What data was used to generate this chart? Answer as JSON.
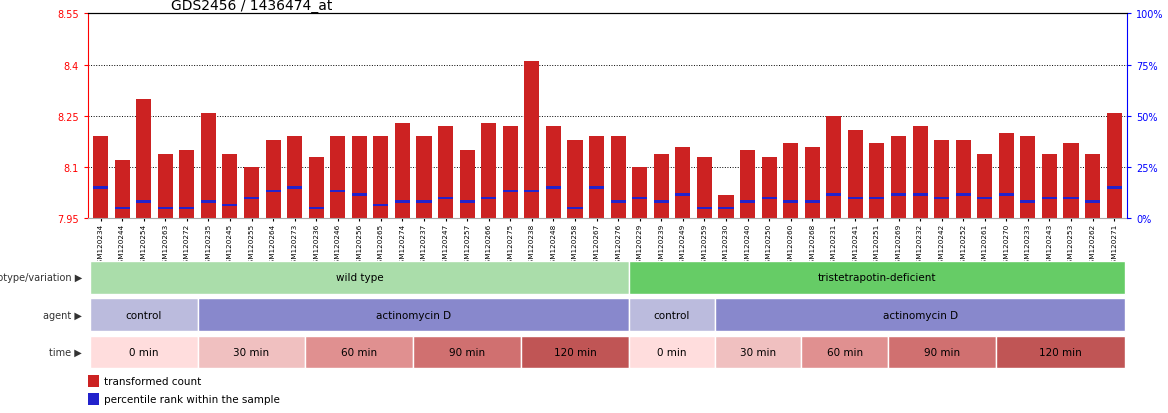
{
  "title": "GDS2456 / 1436474_at",
  "samples": [
    "GSM120234",
    "GSM120244",
    "GSM120254",
    "GSM120263",
    "GSM120272",
    "GSM120235",
    "GSM120245",
    "GSM120255",
    "GSM120264",
    "GSM120273",
    "GSM120236",
    "GSM120246",
    "GSM120256",
    "GSM120265",
    "GSM120274",
    "GSM120237",
    "GSM120247",
    "GSM120257",
    "GSM120266",
    "GSM120275",
    "GSM120238",
    "GSM120248",
    "GSM120258",
    "GSM120267",
    "GSM120276",
    "GSM120229",
    "GSM120239",
    "GSM120249",
    "GSM120259",
    "GSM120230",
    "GSM120240",
    "GSM120250",
    "GSM120260",
    "GSM120268",
    "GSM120231",
    "GSM120241",
    "GSM120251",
    "GSM120269",
    "GSM120232",
    "GSM120242",
    "GSM120252",
    "GSM120261",
    "GSM120270",
    "GSM120233",
    "GSM120243",
    "GSM120253",
    "GSM120262",
    "GSM120271"
  ],
  "red_values": [
    8.19,
    8.12,
    8.3,
    8.14,
    8.15,
    8.26,
    8.14,
    8.1,
    8.18,
    8.19,
    8.13,
    8.19,
    8.19,
    8.19,
    8.23,
    8.19,
    8.22,
    8.15,
    8.23,
    8.22,
    8.41,
    8.22,
    8.18,
    8.19,
    8.19,
    8.1,
    8.14,
    8.16,
    8.13,
    8.02,
    8.15,
    8.13,
    8.17,
    8.16,
    8.25,
    8.21,
    8.17,
    8.19,
    8.22,
    8.18,
    8.18,
    8.14,
    8.2,
    8.19,
    8.14,
    8.17,
    8.14,
    8.26
  ],
  "blue_values": [
    8.04,
    7.98,
    8.0,
    7.98,
    7.98,
    8.0,
    7.99,
    8.01,
    8.03,
    8.04,
    7.98,
    8.03,
    8.02,
    7.99,
    8.0,
    8.0,
    8.01,
    8.0,
    8.01,
    8.03,
    8.03,
    8.04,
    7.98,
    8.04,
    8.0,
    8.01,
    8.0,
    8.02,
    7.98,
    7.98,
    8.0,
    8.01,
    8.0,
    8.0,
    8.02,
    8.01,
    8.01,
    8.02,
    8.02,
    8.01,
    8.02,
    8.01,
    8.02,
    8.0,
    8.01,
    8.01,
    8.0,
    8.04
  ],
  "ymin": 7.95,
  "ymax": 8.55,
  "yticks_left": [
    7.95,
    8.1,
    8.25,
    8.4,
    8.55
  ],
  "yticks_right": [
    0,
    25,
    50,
    75,
    100
  ],
  "dotted_lines": [
    8.1,
    8.25,
    8.4
  ],
  "genotype_groups": [
    {
      "label": "wild type",
      "start": 0,
      "end": 24,
      "color": "#aaddaa"
    },
    {
      "label": "tristetrapotin-deficient",
      "start": 25,
      "end": 47,
      "color": "#66CC66"
    }
  ],
  "agent_groups": [
    {
      "label": "control",
      "start": 0,
      "end": 4,
      "color": "#BBBBDD"
    },
    {
      "label": "actinomycin D",
      "start": 5,
      "end": 24,
      "color": "#8888CC"
    },
    {
      "label": "control",
      "start": 25,
      "end": 28,
      "color": "#BBBBDD"
    },
    {
      "label": "actinomycin D",
      "start": 29,
      "end": 47,
      "color": "#8888CC"
    }
  ],
  "time_groups": [
    {
      "label": "0 min",
      "start": 0,
      "end": 4,
      "color": "#FFDDDD"
    },
    {
      "label": "30 min",
      "start": 5,
      "end": 9,
      "color": "#F0C0C0"
    },
    {
      "label": "60 min",
      "start": 10,
      "end": 14,
      "color": "#E09090"
    },
    {
      "label": "90 min",
      "start": 15,
      "end": 19,
      "color": "#D07070"
    },
    {
      "label": "120 min",
      "start": 20,
      "end": 24,
      "color": "#C05555"
    },
    {
      "label": "0 min",
      "start": 25,
      "end": 28,
      "color": "#FFDDDD"
    },
    {
      "label": "30 min",
      "start": 29,
      "end": 32,
      "color": "#F0C0C0"
    },
    {
      "label": "60 min",
      "start": 33,
      "end": 36,
      "color": "#E09090"
    },
    {
      "label": "90 min",
      "start": 37,
      "end": 41,
      "color": "#D07070"
    },
    {
      "label": "120 min",
      "start": 42,
      "end": 47,
      "color": "#C05555"
    }
  ],
  "bar_color": "#CC2222",
  "blue_color": "#2222CC",
  "title_fontsize": 10,
  "tick_fontsize": 7,
  "bar_width": 0.7,
  "blue_bar_height": 0.012
}
